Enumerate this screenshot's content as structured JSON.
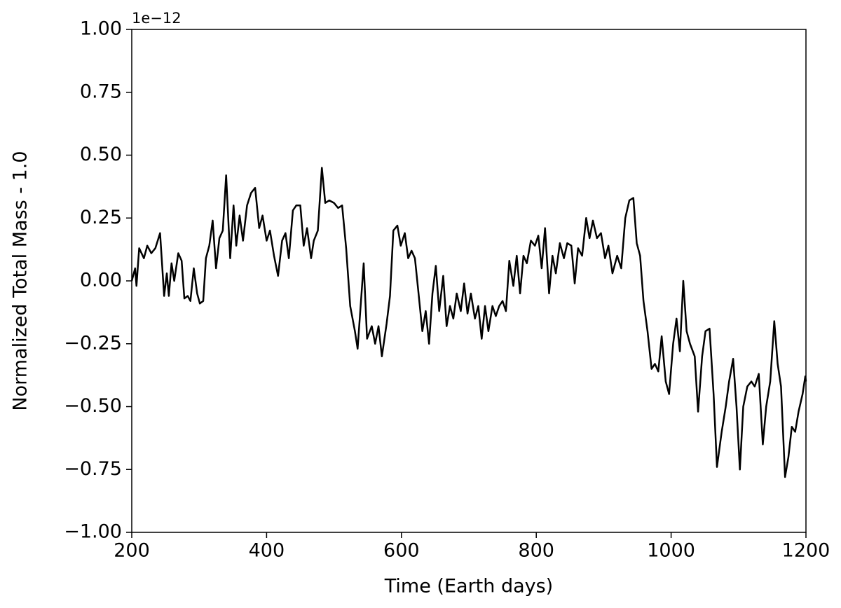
{
  "chart_data": {
    "type": "line",
    "xlabel": "Time (Earth days)",
    "ylabel": "Normalized Total Mass - 1.0",
    "y_offset_text": "1e−12",
    "color": "#000000",
    "x": [
      200,
      205,
      207,
      211,
      218,
      223,
      229,
      235,
      242,
      248,
      252,
      255,
      259,
      263,
      269,
      274,
      278,
      283,
      287,
      292,
      297,
      301,
      306,
      310,
      315,
      320,
      325,
      330,
      335,
      340,
      346,
      351,
      355,
      360,
      365,
      371,
      377,
      383,
      389,
      394,
      400,
      405,
      411,
      417,
      423,
      428,
      433,
      439,
      444,
      450,
      455,
      460,
      466,
      470,
      476,
      482,
      487,
      493,
      500,
      506,
      512,
      518,
      524,
      531,
      535,
      540,
      544,
      549,
      556,
      561,
      566,
      571,
      578,
      583,
      588,
      594,
      599,
      605,
      610,
      615,
      620,
      625,
      631,
      636,
      641,
      646,
      651,
      656,
      662,
      667,
      672,
      677,
      682,
      688,
      693,
      698,
      703,
      709,
      714,
      719,
      724,
      729,
      735,
      740,
      745,
      750,
      755,
      760,
      766,
      771,
      776,
      781,
      786,
      792,
      798,
      803,
      808,
      813,
      819,
      824,
      829,
      835,
      841,
      846,
      852,
      857,
      862,
      868,
      874,
      879,
      884,
      890,
      896,
      902,
      907,
      913,
      920,
      926,
      932,
      938,
      944,
      949,
      954,
      959,
      965,
      971,
      976,
      981,
      986,
      992,
      997,
      1003,
      1008,
      1013,
      1018,
      1023,
      1028,
      1035,
      1040,
      1046,
      1051,
      1057,
      1063,
      1068,
      1075,
      1081,
      1086,
      1092,
      1097,
      1102,
      1107,
      1113,
      1119,
      1124,
      1130,
      1136,
      1141,
      1147,
      1153,
      1158,
      1163,
      1169,
      1174,
      1179,
      1184,
      1189,
      1195,
      1199,
      1200
    ],
    "values": [
      0.0,
      0.05,
      -0.02,
      0.13,
      0.09,
      0.14,
      0.11,
      0.13,
      0.19,
      -0.06,
      0.03,
      -0.06,
      0.07,
      0.0,
      0.11,
      0.08,
      -0.07,
      -0.06,
      -0.08,
      0.05,
      -0.05,
      -0.09,
      -0.08,
      0.09,
      0.14,
      0.24,
      0.05,
      0.17,
      0.2,
      0.42,
      0.09,
      0.3,
      0.14,
      0.26,
      0.16,
      0.3,
      0.35,
      0.37,
      0.21,
      0.26,
      0.16,
      0.2,
      0.1,
      0.02,
      0.16,
      0.19,
      0.09,
      0.28,
      0.3,
      0.3,
      0.14,
      0.21,
      0.09,
      0.16,
      0.2,
      0.45,
      0.31,
      0.32,
      0.31,
      0.29,
      0.3,
      0.13,
      -0.1,
      -0.2,
      -0.27,
      -0.08,
      0.07,
      -0.23,
      -0.18,
      -0.25,
      -0.18,
      -0.3,
      -0.17,
      -0.06,
      0.2,
      0.22,
      0.14,
      0.19,
      0.09,
      0.12,
      0.09,
      -0.04,
      -0.2,
      -0.12,
      -0.25,
      -0.05,
      0.06,
      -0.12,
      0.02,
      -0.18,
      -0.1,
      -0.15,
      -0.05,
      -0.12,
      -0.01,
      -0.13,
      -0.05,
      -0.15,
      -0.1,
      -0.23,
      -0.1,
      -0.2,
      -0.1,
      -0.14,
      -0.1,
      -0.08,
      -0.12,
      0.08,
      -0.02,
      0.1,
      -0.05,
      0.1,
      0.07,
      0.16,
      0.14,
      0.18,
      0.05,
      0.21,
      -0.05,
      0.1,
      0.03,
      0.15,
      0.09,
      0.15,
      0.14,
      -0.01,
      0.13,
      0.1,
      0.25,
      0.17,
      0.24,
      0.17,
      0.19,
      0.09,
      0.14,
      0.03,
      0.1,
      0.05,
      0.25,
      0.32,
      0.33,
      0.15,
      0.1,
      -0.08,
      -0.2,
      -0.35,
      -0.33,
      -0.36,
      -0.22,
      -0.4,
      -0.45,
      -0.25,
      -0.15,
      -0.28,
      0.0,
      -0.2,
      -0.25,
      -0.3,
      -0.52,
      -0.3,
      -0.2,
      -0.19,
      -0.45,
      -0.74,
      -0.6,
      -0.5,
      -0.4,
      -0.31,
      -0.5,
      -0.75,
      -0.5,
      -0.42,
      -0.4,
      -0.42,
      -0.37,
      -0.65,
      -0.5,
      -0.4,
      -0.16,
      -0.33,
      -0.42,
      -0.78,
      -0.7,
      -0.58,
      -0.6,
      -0.52,
      -0.45,
      -0.38,
      -0.4
    ],
    "xlim": [
      200,
      1200
    ],
    "xticks": [
      200,
      400,
      600,
      800,
      1000,
      1200
    ],
    "ylim": [
      -1,
      1
    ],
    "yticks": [
      {
        "value": -1,
        "label": "−1.00"
      },
      {
        "value": -0.75,
        "label": "−0.75"
      },
      {
        "value": -0.5,
        "label": "−0.50"
      },
      {
        "value": -0.25,
        "label": "−0.25"
      },
      {
        "value": 0,
        "label": "0.00"
      },
      {
        "value": 0.25,
        "label": "0.25"
      },
      {
        "value": 0.5,
        "label": "0.50"
      },
      {
        "value": 0.75,
        "label": "0.75"
      },
      {
        "value": 1,
        "label": "1.00"
      }
    ],
    "grid": false
  }
}
